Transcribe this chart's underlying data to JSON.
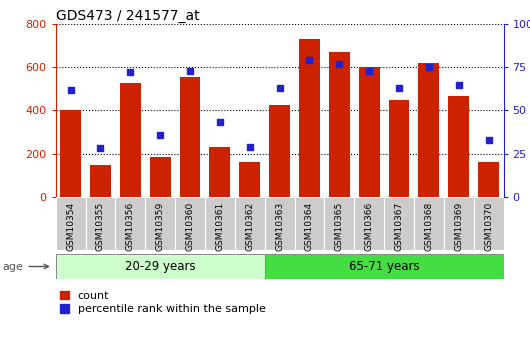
{
  "title": "GDS473 / 241577_at",
  "samples": [
    "GSM10354",
    "GSM10355",
    "GSM10356",
    "GSM10359",
    "GSM10360",
    "GSM10361",
    "GSM10362",
    "GSM10363",
    "GSM10364",
    "GSM10365",
    "GSM10366",
    "GSM10367",
    "GSM10368",
    "GSM10369",
    "GSM10370"
  ],
  "counts": [
    400,
    148,
    525,
    182,
    555,
    228,
    162,
    425,
    730,
    670,
    600,
    450,
    620,
    465,
    162
  ],
  "percentiles": [
    62,
    28,
    72,
    36,
    73,
    43,
    29,
    63,
    79,
    77,
    73,
    63,
    75,
    65,
    33
  ],
  "group1_label": "20-29 years",
  "group2_label": "65-71 years",
  "group1_count": 7,
  "group2_count": 8,
  "bar_color": "#cc2200",
  "marker_color": "#2222cc",
  "group1_bg": "#ccffcc",
  "group2_bg": "#44dd44",
  "age_label": "age",
  "legend_count": "count",
  "legend_percentile": "percentile rank within the sample",
  "ylim_left": [
    0,
    800
  ],
  "ylim_right": [
    0,
    100
  ],
  "yticks_left": [
    0,
    200,
    400,
    600,
    800
  ],
  "yticks_right": [
    0,
    25,
    50,
    75,
    100
  ],
  "title_color": "#000000",
  "left_tick_color": "#cc2200",
  "right_tick_color": "#2222cc",
  "tick_label_bg": "#cccccc",
  "fig_bg": "#ffffff"
}
